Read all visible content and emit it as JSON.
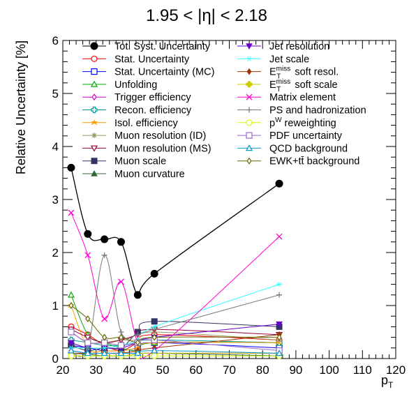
{
  "chart_data": {
    "type": "line",
    "title": "1.95 < |η| < 2.18",
    "xlabel": "p",
    "xlabel_sub": "T",
    "ylabel": "Relative Uncertainty [%]",
    "xlim": [
      20,
      120
    ],
    "ylim": [
      0,
      6
    ],
    "x_ticks": [
      "20",
      "30",
      "40",
      "50",
      "60",
      "70",
      "80",
      "90",
      "100",
      "110",
      "120"
    ],
    "y_ticks": [
      "0",
      "1",
      "2",
      "3",
      "4",
      "5",
      "6"
    ],
    "x": [
      22.5,
      27.5,
      32.5,
      37.5,
      42.5,
      47.5,
      85
    ],
    "series": [
      {
        "name": "Tot. Syst. Uncertainty",
        "color": "#000000",
        "marker": "circle-filled",
        "values": [
          3.6,
          2.35,
          2.25,
          2.2,
          1.2,
          1.6,
          3.3
        ]
      },
      {
        "name": "Stat. Uncertainty",
        "color": "#ff0000",
        "marker": "circle-open",
        "values": [
          0.6,
          0.45,
          0.25,
          0.15,
          0.3,
          0.45,
          0.35
        ]
      },
      {
        "name": "Stat. Uncertainty (MC)",
        "color": "#0000ff",
        "marker": "square-open",
        "values": [
          0.25,
          0.2,
          0.15,
          0.15,
          0.2,
          0.3,
          0.2
        ]
      },
      {
        "name": "Unfolding",
        "color": "#00aa00",
        "marker": "triangle-open",
        "values": [
          1.2,
          0.45,
          0.3,
          0.2,
          0.15,
          0.3,
          0.3
        ]
      },
      {
        "name": "Trigger efficiency",
        "color": "#cc00cc",
        "marker": "diamond-open",
        "values": [
          0.15,
          0.1,
          0.1,
          0.1,
          0.1,
          0.1,
          0.1
        ]
      },
      {
        "name": "Recon. efficiency",
        "color": "#009999",
        "marker": "cross-open",
        "values": [
          0.35,
          0.3,
          0.25,
          0.25,
          0.3,
          0.35,
          0.3
        ]
      },
      {
        "name": "Isol. efficiency",
        "color": "#ff9900",
        "marker": "star",
        "values": [
          1.0,
          0.2,
          0.15,
          0.15,
          0.2,
          0.3,
          0.3
        ]
      },
      {
        "name": "Muon resolution (ID)",
        "color": "#999966",
        "marker": "asterisk",
        "values": [
          0.5,
          0.3,
          0.3,
          0.35,
          0.35,
          0.5,
          0.35
        ]
      },
      {
        "name": "Muon resolution (MS)",
        "color": "#990033",
        "marker": "triangle-down-open",
        "values": [
          0.55,
          0.4,
          0.3,
          0.35,
          0.45,
          0.55,
          0.45
        ]
      },
      {
        "name": "Muon scale",
        "color": "#333366",
        "marker": "square-filled",
        "values": [
          0.25,
          0.15,
          0.2,
          0.2,
          0.5,
          0.7,
          0.6
        ]
      },
      {
        "name": "Muon curvature",
        "color": "#336633",
        "marker": "triangle-filled",
        "values": [
          0.1,
          0.08,
          0.05,
          0.05,
          0.08,
          0.1,
          0.05
        ]
      },
      {
        "name": "Jet resolution",
        "color": "#6600cc",
        "marker": "triangle-down-filled",
        "values": [
          0.3,
          0.2,
          0.2,
          0.2,
          0.3,
          0.4,
          0.65
        ]
      },
      {
        "name": "Jet scale",
        "color": "#33ffff",
        "marker": "star-thin",
        "values": [
          0.2,
          0.2,
          0.2,
          0.25,
          0.35,
          0.6,
          1.4
        ]
      },
      {
        "name": "E_T^miss soft resol.",
        "color": "#993300",
        "marker": "diamond-filled",
        "values": [
          0.1,
          0.1,
          0.1,
          0.1,
          0.15,
          0.2,
          0.45
        ]
      },
      {
        "name": "E_T^miss soft scale",
        "color": "#cccc00",
        "marker": "cross-filled",
        "values": [
          0.05,
          0.05,
          0.05,
          0.05,
          0.08,
          0.1,
          0.1
        ]
      },
      {
        "name": "Matrix element",
        "color": "#ff00cc",
        "marker": "x",
        "values": [
          2.75,
          1.95,
          0.75,
          1.45,
          0.3,
          0.15,
          2.3
        ]
      },
      {
        "name": "PS and hadronization",
        "color": "#777777",
        "marker": "plus",
        "values": [
          0.1,
          0.2,
          1.95,
          0.5,
          0.45,
          0.55,
          1.2
        ]
      },
      {
        "name": "p^W reweighting",
        "color": "#ccff00",
        "marker": "circle-open",
        "values": [
          0.05,
          0.05,
          0.05,
          0.05,
          0.05,
          0.05,
          0.05
        ]
      },
      {
        "name": "PDF uncertainty",
        "color": "#9966cc",
        "marker": "square-open",
        "values": [
          0.5,
          0.3,
          0.3,
          0.25,
          0.3,
          0.35,
          0.15
        ]
      },
      {
        "name": "QCD background",
        "color": "#0099cc",
        "marker": "triangle-open",
        "values": [
          0.15,
          0.1,
          0.1,
          0.1,
          0.1,
          0.15,
          0.1
        ]
      },
      {
        "name": "EWK+tt̄ background",
        "color": "#666600",
        "marker": "diamond-open",
        "values": [
          1.0,
          0.75,
          0.4,
          0.4,
          0.3,
          0.4,
          0.4
        ]
      }
    ],
    "legend_placement": "top"
  }
}
